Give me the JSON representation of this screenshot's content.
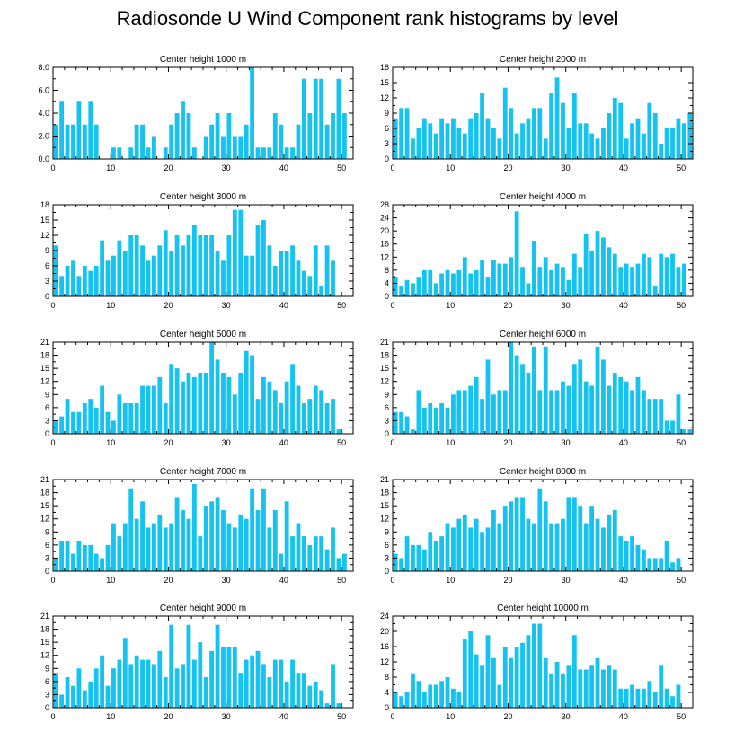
{
  "title": "Radiosonde U Wind Component rank histograms by level",
  "colors": {
    "bar": "#14c3f0",
    "axis": "#000000",
    "background": "#ffffff"
  },
  "chart_data": [
    {
      "type": "bar",
      "title": "Center height 1000 m",
      "xlim": [
        0,
        52
      ],
      "ylim": [
        0,
        8
      ],
      "xticks": [
        0,
        10,
        20,
        30,
        40,
        50
      ],
      "yticks": [
        "0.0",
        "2.0",
        "4.0",
        "6.0",
        "8.0"
      ],
      "values": [
        3,
        5,
        3,
        3,
        5,
        3,
        5,
        3,
        0,
        0,
        1,
        1,
        0,
        1,
        3,
        3,
        1,
        2,
        0,
        1,
        3,
        4,
        5,
        4,
        1,
        0,
        2,
        3,
        4,
        2,
        4,
        2,
        2,
        3,
        8,
        1,
        1,
        1,
        4,
        3,
        1,
        1,
        3,
        7,
        4,
        7,
        7,
        3,
        4,
        7,
        4,
        0
      ]
    },
    {
      "type": "bar",
      "title": "Center height 2000 m",
      "xlim": [
        0,
        52
      ],
      "ylim": [
        0,
        18
      ],
      "xticks": [
        0,
        10,
        20,
        30,
        40,
        50
      ],
      "yticks": [
        "0",
        "3",
        "6",
        "9",
        "12",
        "15",
        "18"
      ],
      "values": [
        8,
        10,
        10,
        4,
        6,
        8,
        7,
        5,
        8,
        7,
        8,
        6,
        5,
        8,
        9,
        13,
        8,
        6,
        4,
        14,
        10,
        5,
        7,
        8,
        10,
        10,
        4,
        13,
        16,
        11,
        6,
        13,
        7,
        7,
        5,
        4,
        6,
        9,
        12,
        11,
        4,
        7,
        8,
        5,
        11,
        9,
        3,
        6,
        6,
        8,
        7,
        9
      ]
    },
    {
      "type": "bar",
      "title": "Center height 3000 m",
      "xlim": [
        0,
        52
      ],
      "ylim": [
        0,
        18
      ],
      "xticks": [
        0,
        10,
        20,
        30,
        40,
        50
      ],
      "yticks": [
        "0",
        "3",
        "6",
        "9",
        "12",
        "15",
        "18"
      ],
      "values": [
        10,
        4,
        6,
        7,
        4,
        6,
        5,
        6,
        11,
        7,
        8,
        11,
        9,
        12,
        12,
        10,
        7,
        8,
        10,
        13,
        9,
        12,
        10,
        12,
        14,
        12,
        12,
        12,
        9,
        7,
        12,
        17,
        17,
        8,
        8,
        14,
        15,
        10,
        6,
        9,
        9,
        10,
        7,
        5,
        4,
        10,
        2,
        10,
        7,
        0,
        0,
        0
      ]
    },
    {
      "type": "bar",
      "title": "Center height 4000 m",
      "xlim": [
        0,
        52
      ],
      "ylim": [
        0,
        28
      ],
      "xticks": [
        0,
        10,
        20,
        30,
        40,
        50
      ],
      "yticks": [
        "0",
        "4",
        "8",
        "12",
        "16",
        "20",
        "24",
        "28"
      ],
      "values": [
        6,
        3,
        5,
        4,
        6,
        8,
        8,
        4,
        7,
        8,
        7,
        8,
        12,
        7,
        8,
        11,
        6,
        11,
        10,
        10,
        12,
        26,
        9,
        4,
        17,
        9,
        12,
        8,
        10,
        9,
        5,
        13,
        9,
        19,
        14,
        20,
        18,
        15,
        13,
        9,
        10,
        9,
        10,
        13,
        12,
        3,
        13,
        12,
        13,
        9,
        10,
        0
      ]
    },
    {
      "type": "bar",
      "title": "Center height 5000 m",
      "xlim": [
        0,
        52
      ],
      "ylim": [
        0,
        21
      ],
      "xticks": [
        0,
        10,
        20,
        30,
        40,
        50
      ],
      "yticks": [
        "0",
        "3",
        "6",
        "9",
        "12",
        "15",
        "18",
        "21"
      ],
      "values": [
        3,
        4,
        8,
        5,
        5,
        7,
        8,
        6,
        11,
        5,
        3,
        9,
        7,
        7,
        7,
        11,
        11,
        11,
        13,
        7,
        16,
        15,
        12,
        14,
        13,
        14,
        14,
        21,
        17,
        14,
        13,
        9,
        14,
        19,
        18,
        8,
        13,
        12,
        10,
        7,
        12,
        16,
        11,
        7,
        8,
        11,
        10,
        7,
        8,
        1,
        0,
        0
      ]
    },
    {
      "type": "bar",
      "title": "Center height 6000 m",
      "xlim": [
        0,
        52
      ],
      "ylim": [
        0,
        21
      ],
      "xticks": [
        0,
        10,
        20,
        30,
        40,
        50
      ],
      "yticks": [
        "0",
        "3",
        "6",
        "9",
        "12",
        "15",
        "18",
        "21"
      ],
      "values": [
        5,
        5,
        4,
        1,
        10,
        6,
        7,
        6,
        7,
        6,
        9,
        10,
        10,
        11,
        13,
        8,
        17,
        9,
        10,
        10,
        21,
        18,
        16,
        14,
        20,
        10,
        20,
        10,
        10,
        12,
        11,
        16,
        17,
        12,
        11,
        20,
        17,
        11,
        14,
        13,
        12,
        10,
        13,
        10,
        8,
        8,
        8,
        3,
        3,
        9,
        1,
        1
      ]
    },
    {
      "type": "bar",
      "title": "Center height 7000 m",
      "xlim": [
        0,
        52
      ],
      "ylim": [
        0,
        21
      ],
      "xticks": [
        0,
        10,
        20,
        30,
        40,
        50
      ],
      "yticks": [
        "0",
        "3",
        "6",
        "9",
        "12",
        "15",
        "18",
        "21"
      ],
      "values": [
        3,
        7,
        7,
        4,
        7,
        6,
        6,
        4,
        3,
        6,
        11,
        8,
        11,
        19,
        12,
        16,
        10,
        11,
        13,
        10,
        11,
        17,
        14,
        12,
        20,
        8,
        15,
        16,
        17,
        14,
        11,
        10,
        13,
        12,
        19,
        14,
        19,
        10,
        14,
        4,
        16,
        8,
        11,
        8,
        6,
        8,
        8,
        5,
        10,
        3,
        4,
        0
      ]
    },
    {
      "type": "bar",
      "title": "Center height 8000 m",
      "xlim": [
        0,
        52
      ],
      "ylim": [
        0,
        21
      ],
      "xticks": [
        0,
        10,
        20,
        30,
        40,
        50
      ],
      "yticks": [
        "0",
        "3",
        "6",
        "9",
        "12",
        "15",
        "18",
        "21"
      ],
      "values": [
        4,
        3,
        8,
        6,
        6,
        5,
        9,
        7,
        8,
        11,
        10,
        12,
        13,
        10,
        12,
        9,
        10,
        14,
        11,
        15,
        16,
        17,
        17,
        12,
        11,
        19,
        16,
        11,
        11,
        12,
        17,
        17,
        15,
        11,
        15,
        12,
        10,
        13,
        14,
        8,
        7,
        8,
        6,
        5,
        3,
        3,
        3,
        7,
        2,
        3,
        0,
        0
      ]
    },
    {
      "type": "bar",
      "title": "Center height 9000 m",
      "xlim": [
        0,
        52
      ],
      "ylim": [
        0,
        21
      ],
      "xticks": [
        0,
        10,
        20,
        30,
        40,
        50
      ],
      "yticks": [
        "0",
        "3",
        "6",
        "9",
        "12",
        "15",
        "18",
        "21"
      ],
      "values": [
        8,
        3,
        7,
        5,
        9,
        4,
        6,
        9,
        12,
        5,
        9,
        11,
        16,
        10,
        12,
        11,
        11,
        10,
        13,
        7,
        19,
        9,
        10,
        19,
        11,
        15,
        7,
        13,
        19,
        14,
        14,
        14,
        8,
        11,
        12,
        13,
        10,
        7,
        11,
        11,
        6,
        11,
        8,
        8,
        5,
        6,
        4,
        1,
        10,
        1,
        0,
        0
      ]
    },
    {
      "type": "bar",
      "title": "Center height 10000 m",
      "xlim": [
        0,
        52
      ],
      "ylim": [
        0,
        24
      ],
      "xticks": [
        0,
        10,
        20,
        30,
        40,
        50
      ],
      "yticks": [
        "0",
        "4",
        "8",
        "12",
        "16",
        "20",
        "24"
      ],
      "values": [
        4,
        3,
        4,
        9,
        7,
        4,
        6,
        6,
        7,
        8,
        5,
        4,
        18,
        20,
        14,
        11,
        19,
        13,
        6,
        16,
        13,
        16,
        17,
        19,
        22,
        22,
        13,
        9,
        12,
        9,
        11,
        19,
        10,
        10,
        11,
        13,
        10,
        11,
        10,
        5,
        5,
        6,
        5,
        5,
        7,
        4,
        11,
        5,
        3,
        6,
        0,
        0
      ]
    }
  ]
}
